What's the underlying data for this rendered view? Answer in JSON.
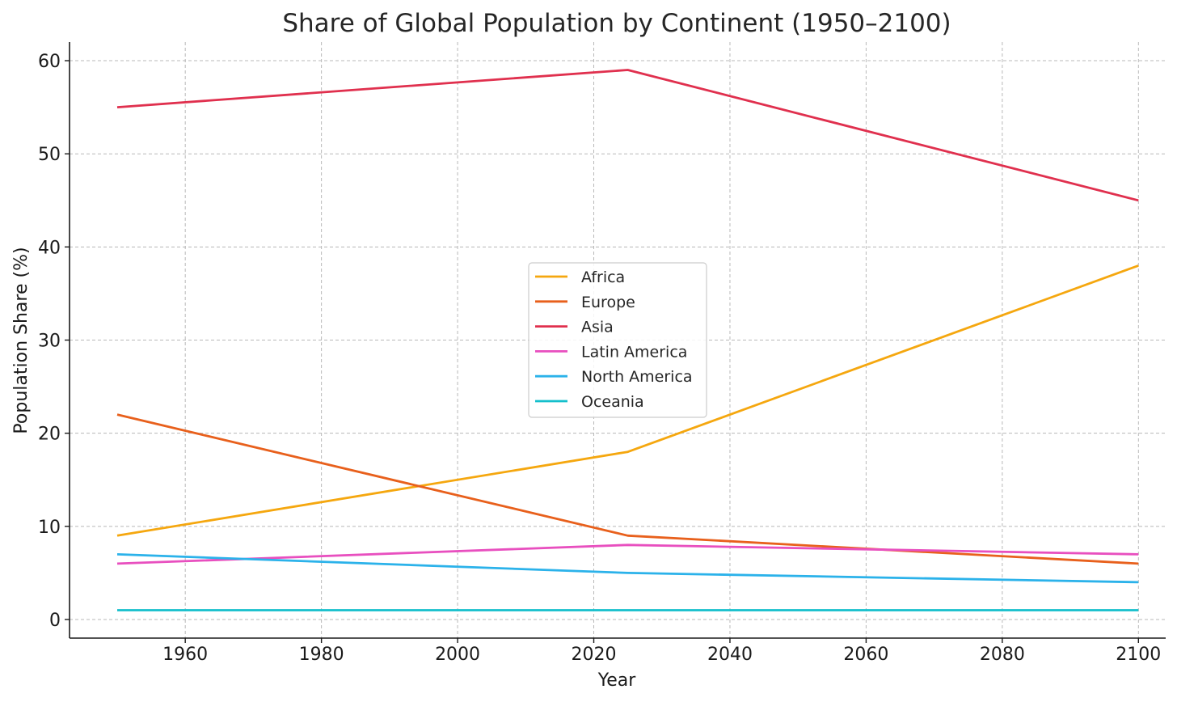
{
  "chart_data": {
    "type": "line",
    "title": "Share of Global Population by Continent (1950–2100)",
    "xlabel": "Year",
    "ylabel": "Population Share (%)",
    "x": [
      1950,
      2025,
      2100
    ],
    "xlim": [
      1943,
      2104
    ],
    "ylim": [
      -2,
      62
    ],
    "xticks": [
      1960,
      1980,
      2000,
      2020,
      2040,
      2060,
      2080,
      2100
    ],
    "yticks": [
      0,
      10,
      20,
      30,
      40,
      50,
      60
    ],
    "grid": true,
    "legend_position": "center",
    "series": [
      {
        "name": "Africa",
        "color": "#f5a70f",
        "values": [
          9,
          18,
          38
        ]
      },
      {
        "name": "Europe",
        "color": "#e8601c",
        "values": [
          22,
          9,
          6
        ]
      },
      {
        "name": "Asia",
        "color": "#e0304e",
        "values": [
          55,
          59,
          45
        ]
      },
      {
        "name": "Latin America",
        "color": "#e84fbf",
        "values": [
          6,
          8,
          7
        ]
      },
      {
        "name": "North America",
        "color": "#2bb2ea",
        "values": [
          7,
          5,
          4
        ]
      },
      {
        "name": "Oceania",
        "color": "#14bfcc",
        "values": [
          1,
          1,
          1
        ]
      }
    ]
  }
}
